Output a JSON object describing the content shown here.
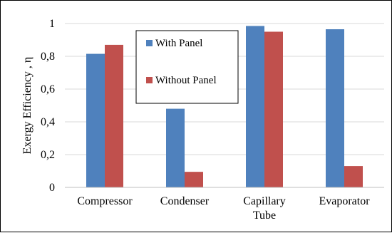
{
  "chart_data": {
    "type": "bar",
    "categories": [
      [
        "Compressor"
      ],
      [
        "Condenser"
      ],
      [
        "Capillary",
        "Tube"
      ],
      [
        "Evaporator"
      ]
    ],
    "series": [
      {
        "name": "With Panel",
        "values": [
          0.815,
          0.48,
          0.985,
          0.965
        ]
      },
      {
        "name": "Without Panel",
        "values": [
          0.87,
          0.095,
          0.95,
          0.13
        ]
      }
    ],
    "title": "",
    "xlabel": "",
    "ylabel": "Exergy Efficiency , η",
    "ylim": [
      0,
      1
    ],
    "yticks": [
      "0",
      "0,2",
      "0,4",
      "0,6",
      "0,8",
      "1"
    ],
    "grid": "horizontal",
    "legend_position": "inside-top-left",
    "colors": {
      "with_panel": "#4f81bd",
      "without_panel": "#c0504d",
      "grid": "#d9d9d9",
      "axis": "#bfbfbf"
    }
  }
}
